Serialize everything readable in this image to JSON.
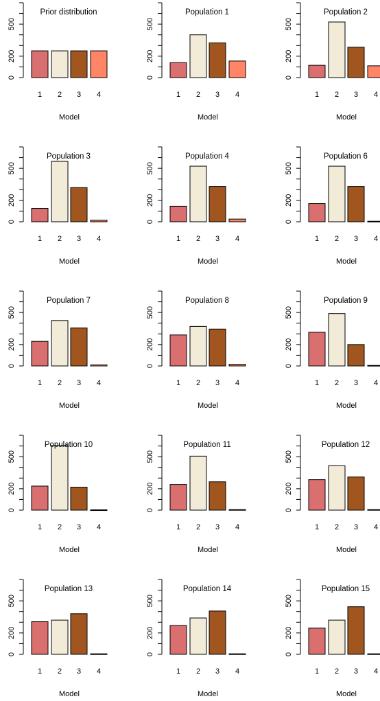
{
  "chart_data": [
    {
      "type": "bar",
      "title": "Prior distribution",
      "xlabel": "Model",
      "categories": [
        "1",
        "2",
        "3",
        "4"
      ],
      "values": [
        250,
        250,
        250,
        250
      ],
      "ylim": [
        0,
        700
      ],
      "yticks": [
        "0",
        "200",
        "500"
      ]
    },
    {
      "type": "bar",
      "title": "Population 1",
      "xlabel": "Model",
      "categories": [
        "1",
        "2",
        "3",
        "4"
      ],
      "values": [
        140,
        400,
        325,
        155
      ],
      "ylim": [
        0,
        700
      ],
      "yticks": [
        "0",
        "200",
        "500"
      ]
    },
    {
      "type": "bar",
      "title": "Population 2",
      "xlabel": "Model",
      "categories": [
        "1",
        "2",
        "3",
        "4"
      ],
      "values": [
        115,
        520,
        285,
        110
      ],
      "ylim": [
        0,
        700
      ],
      "yticks": [
        "0",
        "200",
        "500"
      ]
    },
    {
      "type": "bar",
      "title": "Population 3",
      "xlabel": "Model",
      "categories": [
        "1",
        "2",
        "3",
        "4"
      ],
      "values": [
        125,
        565,
        320,
        15
      ],
      "ylim": [
        0,
        700
      ],
      "yticks": [
        "0",
        "200",
        "500"
      ]
    },
    {
      "type": "bar",
      "title": "Population 4",
      "xlabel": "Model",
      "categories": [
        "1",
        "2",
        "3",
        "4"
      ],
      "values": [
        145,
        520,
        330,
        25
      ],
      "ylim": [
        0,
        700
      ],
      "yticks": [
        "0",
        "200",
        "500"
      ]
    },
    {
      "type": "bar",
      "title": "Population 6",
      "xlabel": "Model",
      "categories": [
        "1",
        "2",
        "3",
        "4"
      ],
      "values": [
        170,
        520,
        330,
        5
      ],
      "ylim": [
        0,
        700
      ],
      "yticks": [
        "0",
        "200",
        "500"
      ]
    },
    {
      "type": "bar",
      "title": "Population 7",
      "xlabel": "Model",
      "categories": [
        "1",
        "2",
        "3",
        "4"
      ],
      "values": [
        230,
        425,
        355,
        10
      ],
      "ylim": [
        0,
        700
      ],
      "yticks": [
        "0",
        "200",
        "500"
      ]
    },
    {
      "type": "bar",
      "title": "Population 8",
      "xlabel": "Model",
      "categories": [
        "1",
        "2",
        "3",
        "4"
      ],
      "values": [
        290,
        370,
        345,
        15
      ],
      "ylim": [
        0,
        700
      ],
      "yticks": [
        "0",
        "200",
        "500"
      ]
    },
    {
      "type": "bar",
      "title": "Population 9",
      "xlabel": "Model",
      "categories": [
        "1",
        "2",
        "3",
        "4"
      ],
      "values": [
        315,
        490,
        200,
        5
      ],
      "ylim": [
        0,
        700
      ],
      "yticks": [
        "0",
        "200",
        "500"
      ]
    },
    {
      "type": "bar",
      "title": "Population 10",
      "xlabel": "Model",
      "categories": [
        "1",
        "2",
        "3",
        "4"
      ],
      "values": [
        225,
        605,
        215,
        3
      ],
      "ylim": [
        0,
        700
      ],
      "yticks": [
        "0",
        "200",
        "500"
      ]
    },
    {
      "type": "bar",
      "title": "Population 11",
      "xlabel": "Model",
      "categories": [
        "1",
        "2",
        "3",
        "4"
      ],
      "values": [
        240,
        505,
        265,
        5
      ],
      "ylim": [
        0,
        700
      ],
      "yticks": [
        "0",
        "200",
        "500"
      ]
    },
    {
      "type": "bar",
      "title": "Population 12",
      "xlabel": "Model",
      "categories": [
        "1",
        "2",
        "3",
        "4"
      ],
      "values": [
        285,
        415,
        310,
        5
      ],
      "ylim": [
        0,
        700
      ],
      "yticks": [
        "0",
        "200",
        "500"
      ]
    },
    {
      "type": "bar",
      "title": "Population 13",
      "xlabel": "Model",
      "categories": [
        "1",
        "2",
        "3",
        "4"
      ],
      "values": [
        305,
        320,
        380,
        5
      ],
      "ylim": [
        0,
        700
      ],
      "yticks": [
        "0",
        "200",
        "500"
      ]
    },
    {
      "type": "bar",
      "title": "Population 14",
      "xlabel": "Model",
      "categories": [
        "1",
        "2",
        "3",
        "4"
      ],
      "values": [
        270,
        340,
        405,
        5
      ],
      "ylim": [
        0,
        700
      ],
      "yticks": [
        "0",
        "200",
        "500"
      ]
    },
    {
      "type": "bar",
      "title": "Population 15",
      "xlabel": "Model",
      "categories": [
        "1",
        "2",
        "3",
        "4"
      ],
      "values": [
        245,
        320,
        445,
        5
      ],
      "ylim": [
        0,
        700
      ],
      "yticks": [
        "0",
        "200",
        "500"
      ]
    }
  ],
  "colors": {
    "bars": [
      "#D9706F",
      "#F2EBD7",
      "#A0561E",
      "#FF8566"
    ],
    "axis": "#000000",
    "bar_stroke": "#000000"
  }
}
